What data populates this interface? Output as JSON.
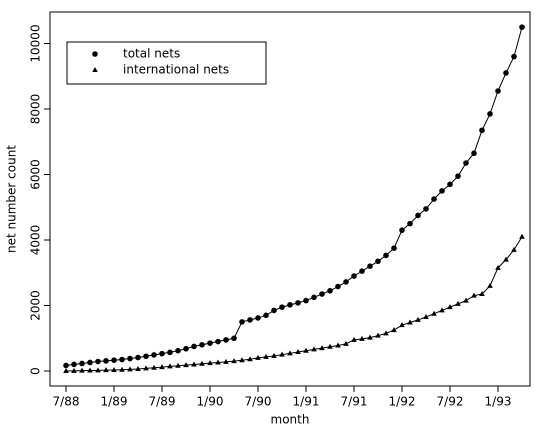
{
  "chart_data": {
    "type": "line",
    "x_label": "month",
    "y_label": "net number count",
    "categories": [
      "7/88",
      null,
      null,
      null,
      null,
      null,
      "1/89",
      null,
      null,
      null,
      null,
      null,
      "7/89",
      null,
      null,
      null,
      null,
      null,
      "1/90",
      null,
      null,
      null,
      null,
      null,
      "7/90",
      null,
      null,
      null,
      null,
      null,
      "1/91",
      null,
      null,
      null,
      null,
      null,
      "7/91",
      null,
      null,
      null,
      null,
      null,
      "1/92",
      null,
      null,
      null,
      null,
      null,
      "7/92",
      null,
      null,
      null,
      null,
      null,
      "1/93",
      null,
      null,
      null
    ],
    "series": [
      {
        "name": "total nets",
        "color": "#000000",
        "marker": "circle",
        "values": [
          170,
          200,
          230,
          260,
          290,
          310,
          330,
          350,
          380,
          410,
          450,
          490,
          530,
          570,
          620,
          680,
          750,
          800,
          850,
          900,
          950,
          1000,
          1500,
          1560,
          1620,
          1700,
          1850,
          1950,
          2020,
          2080,
          2150,
          2250,
          2350,
          2450,
          2580,
          2720,
          2900,
          3050,
          3200,
          3350,
          3530,
          3750,
          4300,
          4500,
          4750,
          4950,
          5250,
          5500,
          5700,
          5950,
          6350,
          6650,
          7350,
          7850,
          8550,
          9100,
          9600,
          10500
        ]
      },
      {
        "name": "international nets",
        "color": "#000000",
        "marker": "triangle",
        "values": [
          0,
          5,
          10,
          15,
          20,
          25,
          30,
          40,
          50,
          60,
          80,
          100,
          120,
          140,
          160,
          180,
          200,
          220,
          240,
          260,
          280,
          300,
          330,
          360,
          400,
          430,
          460,
          500,
          540,
          580,
          620,
          660,
          700,
          740,
          780,
          830,
          950,
          980,
          1020,
          1080,
          1150,
          1250,
          1400,
          1480,
          1560,
          1650,
          1750,
          1850,
          1950,
          2050,
          2150,
          2300,
          2350,
          2600,
          3150,
          3400,
          3700,
          4100
        ]
      }
    ],
    "ylim": [
      -458,
      10962
    ],
    "yticks": [
      0,
      2000,
      4000,
      6000,
      8000,
      10000
    ],
    "legend": "upper left"
  }
}
